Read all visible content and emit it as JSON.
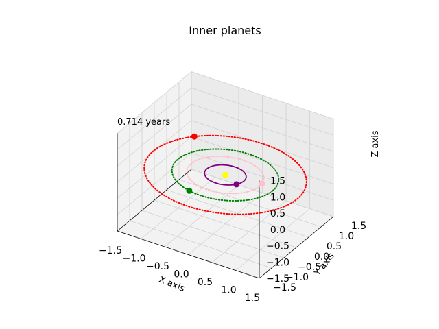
{
  "chart_data": {
    "type": "scatter",
    "title": "Inner planets",
    "annotation": "0.714 years",
    "xlabel": "X axis",
    "ylabel": "Y axis",
    "zlabel": "Z axis",
    "xlim": [
      -1.5,
      1.5
    ],
    "ylim": [
      -1.5,
      1.5
    ],
    "zlim": [
      -1.5,
      1.5
    ],
    "x_ticks": [
      "−1.5",
      "−1.0",
      "−0.5",
      "0.0",
      "0.5",
      "1.0",
      "1.5"
    ],
    "y_ticks": [
      "−1.5",
      "−1.0",
      "−0.5",
      "0.0",
      "0.5",
      "1.0",
      "1.5"
    ],
    "z_ticks": [
      "−1.5",
      "−1.0",
      "−0.5",
      "0.0",
      "0.5",
      "1.0",
      "1.5"
    ],
    "grid": true,
    "sun": {
      "x": 0.0,
      "y": 0.0,
      "z": 0.0,
      "color": "#ffff00"
    },
    "orbits": [
      {
        "color": "#800080",
        "radius": 0.39,
        "style": "solid",
        "phase_deg": -30
      },
      {
        "color": "#ffc0cb",
        "radius": 0.72,
        "style": "dotted",
        "phase_deg": 10
      },
      {
        "color": "#008000",
        "radius": 1.0,
        "style": "dotted",
        "phase_deg": -105
      },
      {
        "color": "#ff0000",
        "radius": 1.52,
        "style": "dotted",
        "phase_deg": 140
      }
    ]
  }
}
